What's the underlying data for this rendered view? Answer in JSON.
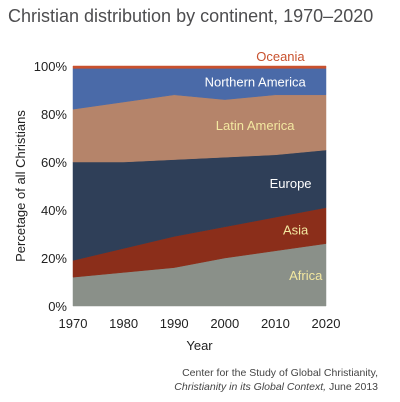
{
  "chart_data": {
    "type": "area",
    "stacked": true,
    "title": "Christian distribution by continent, 1970–2020",
    "xlabel": "Year",
    "ylabel": "Percetage of all Christians",
    "x": [
      1970,
      1980,
      1990,
      2000,
      2010,
      2020
    ],
    "xticks": [
      "1970",
      "1980",
      "1990",
      "2000",
      "2010",
      "2020"
    ],
    "yticks": [
      "0%",
      "20%",
      "40%",
      "60%",
      "80%",
      "100%"
    ],
    "ylim": [
      0,
      100
    ],
    "grid": false,
    "series": [
      {
        "name": "Africa",
        "values": [
          12,
          14,
          16,
          20,
          23,
          26
        ],
        "color": "#8a9089",
        "label_color": "#f3e8a0"
      },
      {
        "name": "Asia",
        "values": [
          7,
          10,
          13,
          13,
          14,
          15
        ],
        "color": "#8b2e1a",
        "label_color": "#f3e8a0"
      },
      {
        "name": "Europe",
        "values": [
          41,
          36,
          32,
          29,
          26,
          24
        ],
        "color": "#2f3f58",
        "label_color": "#ffffff"
      },
      {
        "name": "Latin America",
        "values": [
          22,
          25,
          27,
          24,
          25,
          23
        ],
        "color": "#b5846a",
        "label_color": "#f3e8a0"
      },
      {
        "name": "Northern America",
        "values": [
          17,
          14,
          11,
          13,
          11,
          11
        ],
        "color": "#4a6aa8",
        "label_color": "#ffffff"
      },
      {
        "name": "Oceania",
        "values": [
          1,
          1,
          1,
          1,
          1,
          1
        ],
        "color": "#c8512e",
        "label_color": "#c8512e"
      }
    ]
  },
  "source": {
    "line1": "Center for the Study of Global Christianity,",
    "line2_italic": "Christianity in its Global Context,",
    "line2_rest": " June 2013"
  }
}
